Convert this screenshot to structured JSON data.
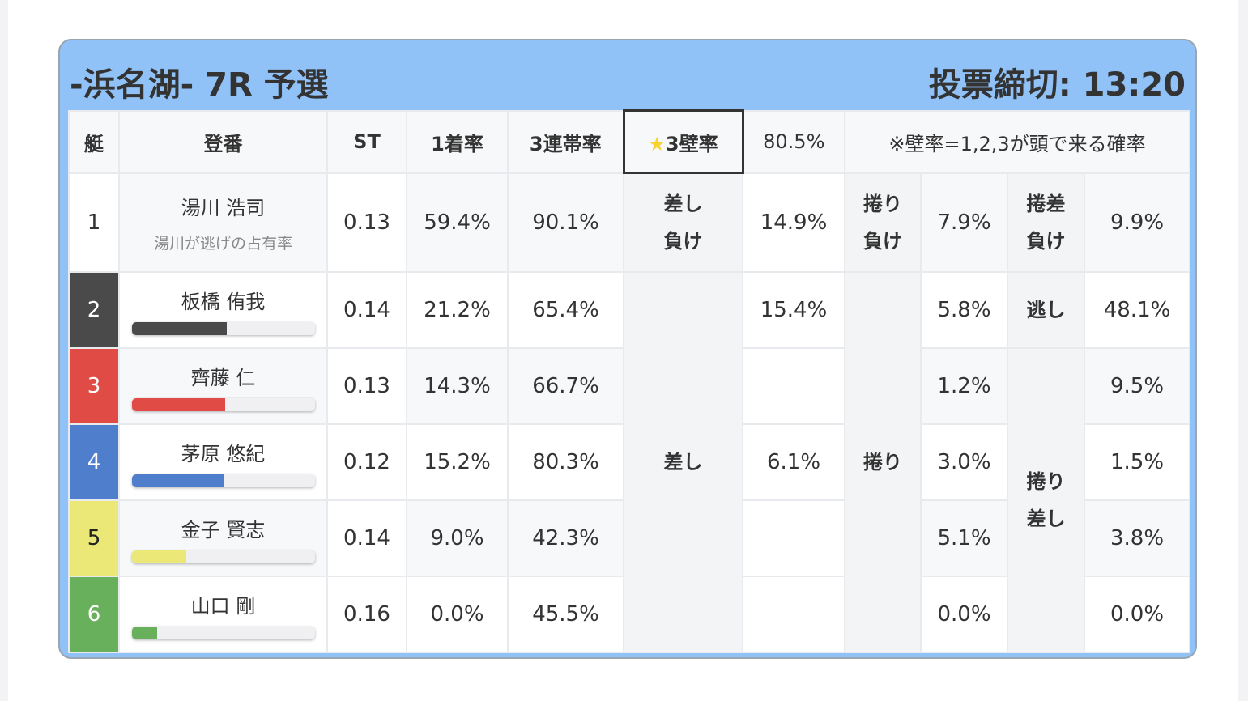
{
  "header": {
    "title": "-浜名湖- 7R 予選",
    "deadline": "投票締切: 13:20"
  },
  "columns": {
    "boat": "艇",
    "name": "登番",
    "st": "ST",
    "first": "1着率",
    "trio": "3連帯率",
    "kabe_label": "3壁率",
    "kabe_value": "80.5%",
    "note": "※壁率=1,2,3が頭で来る確率"
  },
  "icons": {
    "kabe": "star-icon"
  },
  "labels": {
    "sashi_make": [
      "差し",
      "負け"
    ],
    "sashi": "差し",
    "makuri_make": [
      "捲り",
      "負け"
    ],
    "makuri": "捲り",
    "makurisashi_make": [
      "捲差",
      "負け"
    ],
    "nige": "逃し",
    "makurisashi": [
      "捲り",
      "差し"
    ]
  },
  "rows": [
    {
      "boat": "1",
      "name": "湯川 浩司",
      "sub": "湯川が逃げの占有率",
      "st": "0.13",
      "first": "59.4%",
      "trio": "90.1%",
      "c1": "14.9%",
      "c2": "7.9%",
      "c3": "9.9%",
      "color": "#ffffff",
      "text_color": "#333333"
    },
    {
      "boat": "2",
      "name": "板橋 侑我",
      "bar": 52,
      "st": "0.14",
      "first": "21.2%",
      "trio": "65.4%",
      "c1": "15.4%",
      "c2": "5.8%",
      "c3": "48.1%",
      "color": "#4a4a4a",
      "text_color": "#ffffff"
    },
    {
      "boat": "3",
      "name": "齊藤 仁",
      "bar": 51,
      "st": "0.13",
      "first": "14.3%",
      "trio": "66.7%",
      "c1": "",
      "c2": "1.2%",
      "c3": "9.5%",
      "color": "#e04b46",
      "text_color": "#ffffff"
    },
    {
      "boat": "4",
      "name": "茅原 悠紀",
      "bar": 50,
      "st": "0.12",
      "first": "15.2%",
      "trio": "80.3%",
      "c1": "6.1%",
      "c2": "3.0%",
      "c3": "1.5%",
      "color": "#4f7fcc",
      "text_color": "#ffffff"
    },
    {
      "boat": "5",
      "name": "金子 賢志",
      "bar": 30,
      "st": "0.14",
      "first": "9.0%",
      "trio": "42.3%",
      "c1": "",
      "c2": "5.1%",
      "c3": "3.8%",
      "color": "#ece878",
      "text_color": "#222222"
    },
    {
      "boat": "6",
      "name": "山口 剛",
      "bar": 14,
      "st": "0.16",
      "first": "0.0%",
      "trio": "45.5%",
      "c1": "",
      "c2": "0.0%",
      "c3": "0.0%",
      "color": "#69b05c",
      "text_color": "#ffffff"
    }
  ]
}
